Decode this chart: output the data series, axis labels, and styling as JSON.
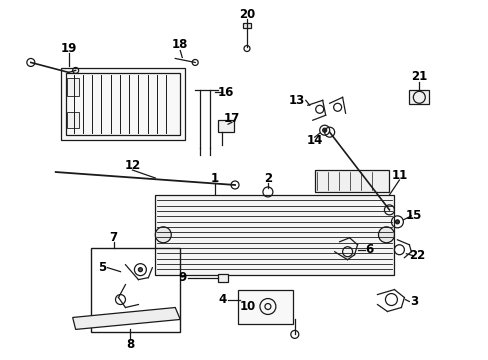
{
  "background_color": "#ffffff",
  "fig_width": 4.89,
  "fig_height": 3.6,
  "dpi": 100,
  "line_color": "#1a1a1a",
  "label_color": "#000000",
  "label_fontsize": 8.5,
  "lw": 0.9
}
